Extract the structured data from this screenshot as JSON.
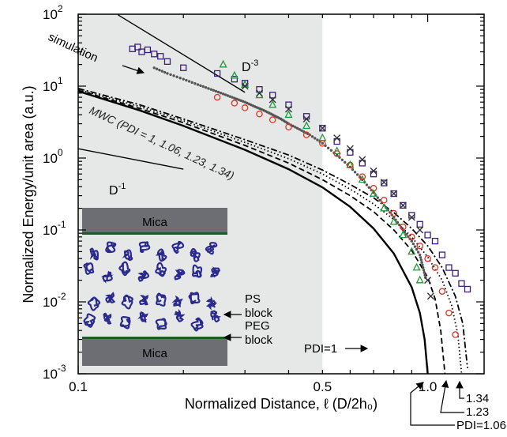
{
  "chart_data": {
    "type": "scatter",
    "x_scale": "log",
    "y_scale": "log",
    "xlim": [
      0.1,
      1.45
    ],
    "ylim": [
      0.001,
      100
    ],
    "xlabel": "Normalized Distance, ℓ (D/2h₀)",
    "ylabel": "Normalized Energy/unit area (a.u.)",
    "x_ticks": [
      {
        "value": 0.1,
        "label": "0.1"
      },
      {
        "value": 0.5,
        "label": "0.5"
      },
      {
        "value": 1.0,
        "label": "1.0"
      }
    ],
    "y_ticks": [
      {
        "value": 100,
        "mantissa": "10",
        "exp": "2"
      },
      {
        "value": 10,
        "mantissa": "10",
        "exp": "1"
      },
      {
        "value": 1,
        "mantissa": "10",
        "exp": "0"
      },
      {
        "value": 0.1,
        "mantissa": "10",
        "exp": "-1"
      },
      {
        "value": 0.01,
        "mantissa": "10",
        "exp": "-2"
      },
      {
        "value": 0.001,
        "mantissa": "10",
        "exp": "-3"
      }
    ],
    "shaded_region": {
      "x": [
        0.1,
        0.5
      ],
      "color": "#e6e8e8"
    },
    "theory_curves": [
      {
        "label": "PDI=1",
        "style": "solid",
        "x": [
          0.1,
          0.15,
          0.2,
          0.3,
          0.4,
          0.5,
          0.6,
          0.7,
          0.8,
          0.9,
          0.95,
          0.98,
          1.0
        ],
        "y": [
          8.5,
          4.6,
          2.8,
          1.3,
          0.7,
          0.39,
          0.21,
          0.105,
          0.047,
          0.016,
          0.007,
          0.003,
          0.001
        ]
      },
      {
        "label": "PDI=1.06",
        "style": "dashed",
        "x": [
          0.1,
          0.15,
          0.2,
          0.3,
          0.4,
          0.5,
          0.6,
          0.7,
          0.8,
          0.9,
          1.0,
          1.05,
          1.09,
          1.12
        ],
        "y": [
          8.8,
          4.9,
          3.1,
          1.5,
          0.85,
          0.5,
          0.3,
          0.18,
          0.1,
          0.052,
          0.022,
          0.011,
          0.004,
          0.001
        ]
      },
      {
        "label": "1.23",
        "style": "dotted",
        "x": [
          0.1,
          0.15,
          0.2,
          0.3,
          0.4,
          0.5,
          0.6,
          0.7,
          0.8,
          0.9,
          1.0,
          1.1,
          1.17,
          1.22,
          1.25
        ],
        "y": [
          9.0,
          5.2,
          3.3,
          1.65,
          0.98,
          0.6,
          0.37,
          0.23,
          0.14,
          0.08,
          0.042,
          0.02,
          0.009,
          0.0035,
          0.001
        ]
      },
      {
        "label": "1.34",
        "style": "dashdot",
        "x": [
          0.1,
          0.15,
          0.2,
          0.3,
          0.4,
          0.5,
          0.6,
          0.7,
          0.8,
          0.9,
          1.0,
          1.1,
          1.2,
          1.26,
          1.3
        ],
        "y": [
          9.3,
          5.5,
          3.5,
          1.8,
          1.1,
          0.68,
          0.43,
          0.28,
          0.175,
          0.105,
          0.06,
          0.03,
          0.012,
          0.005,
          0.0012
        ]
      }
    ],
    "reference_lines": [
      {
        "label": "D",
        "exp": "-3",
        "x": [
          0.13,
          0.3
        ],
        "y": [
          98,
          8.2
        ]
      },
      {
        "label": "D",
        "exp": "-1",
        "x": [
          0.1,
          0.2
        ],
        "y": [
          1.35,
          0.7
        ]
      }
    ],
    "simulation": {
      "x": [
        0.165,
        0.18,
        0.2,
        0.22,
        0.24,
        0.26,
        0.28,
        0.3,
        0.32,
        0.34,
        0.36,
        0.38,
        0.4,
        0.43,
        0.46,
        0.5,
        0.55,
        0.6,
        0.65,
        0.7,
        0.75,
        0.8,
        0.85,
        0.9,
        0.95,
        0.97,
        0.99
      ],
      "y": [
        18,
        15,
        12.5,
        10.5,
        9,
        7.8,
        6.8,
        6,
        5.2,
        4.6,
        4,
        3.5,
        3,
        2.5,
        2.1,
        1.6,
        1.1,
        0.75,
        0.5,
        0.33,
        0.22,
        0.15,
        0.1,
        0.07,
        0.045,
        0.03,
        0.02
      ]
    },
    "data_series": [
      {
        "marker": "square",
        "color": "#3a1f7a",
        "x": [
          0.143,
          0.148,
          0.152,
          0.158,
          0.165,
          0.172,
          0.18,
          0.2,
          0.25,
          0.28,
          0.3,
          0.33,
          0.36,
          0.4,
          0.45,
          0.5,
          0.55,
          0.6,
          0.65,
          0.7,
          0.75,
          0.8,
          0.85,
          0.9,
          0.95,
          1.0,
          1.05,
          1.1,
          1.15,
          1.2,
          1.25,
          1.3
        ],
        "y": [
          33,
          35,
          30,
          32,
          28,
          26,
          22,
          18,
          15,
          12.5,
          11,
          9,
          7.5,
          5.5,
          3.8,
          2.6,
          1.7,
          1.2,
          0.85,
          0.6,
          0.45,
          0.32,
          0.22,
          0.16,
          0.12,
          0.085,
          0.07,
          0.045,
          0.03,
          0.025,
          0.018,
          0.015
        ]
      },
      {
        "marker": "triangle",
        "color": "#1e9a3a",
        "x": [
          0.26,
          0.28,
          0.3,
          0.33,
          0.36,
          0.4,
          0.45,
          0.5,
          0.55,
          0.6,
          0.65,
          0.7,
          0.75,
          0.8,
          0.85,
          0.9,
          0.93,
          0.95
        ],
        "y": [
          20,
          14,
          10.5,
          7.5,
          5.5,
          4,
          2.8,
          1.9,
          1.25,
          0.8,
          0.5,
          0.32,
          0.2,
          0.13,
          0.085,
          0.05,
          0.03,
          0.02
        ]
      },
      {
        "marker": "circle",
        "color": "#dd3322",
        "x": [
          0.25,
          0.28,
          0.3,
          0.33,
          0.36,
          0.4,
          0.45,
          0.5,
          0.55,
          0.6,
          0.65,
          0.7,
          0.75,
          0.8,
          0.85,
          0.9,
          0.95,
          1.0,
          1.05,
          1.1,
          1.15,
          1.2
        ],
        "y": [
          7,
          5.8,
          5,
          4.1,
          3.4,
          2.7,
          2.1,
          1.6,
          1.15,
          0.8,
          0.55,
          0.38,
          0.26,
          0.17,
          0.11,
          0.08,
          0.06,
          0.04,
          0.03,
          0.014,
          0.007,
          0.0035
        ]
      },
      {
        "marker": "x",
        "color": "#333333",
        "x": [
          0.3,
          0.33,
          0.36,
          0.4,
          0.45,
          0.5,
          0.55,
          0.6,
          0.65,
          0.7,
          0.75,
          0.8,
          0.85,
          0.9,
          0.95,
          1.0,
          1.02
        ],
        "y": [
          10,
          8,
          6.5,
          4.8,
          3.5,
          2.6,
          1.9,
          1.35,
          0.95,
          0.66,
          0.46,
          0.32,
          0.22,
          0.15,
          0.1,
          0.02,
          0.012
        ]
      }
    ],
    "annotations": {
      "simulation": "simulation",
      "mwc": "MWC (PDI = 1, 1.06, 1.23, 1.34)",
      "pdi1": "PDI=1",
      "pdi106": "PDI=1.06",
      "l123": "1.23",
      "l134": "1.34"
    },
    "inset": {
      "mica_top": "Mica",
      "mica_bottom": "Mica",
      "ps_1": "PS",
      "ps_2": "block",
      "peg_1": "PEG",
      "peg_2": "block",
      "mica_color": "#6d6e73",
      "graft_color": "#1f5a2a",
      "chain_color": "#2a2a8c"
    }
  }
}
